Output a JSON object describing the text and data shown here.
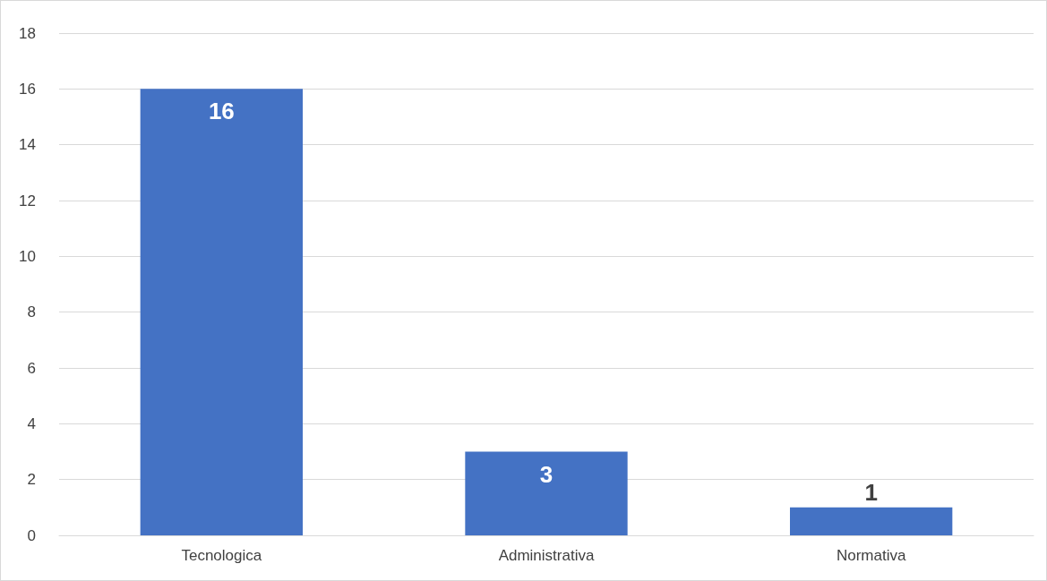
{
  "chart_data": {
    "type": "bar",
    "categories": [
      "Tecnologica",
      "Administrativa",
      "Normativa"
    ],
    "values": [
      16,
      3,
      1
    ],
    "color": "#4472c4",
    "ylim": [
      0,
      18
    ],
    "yticks": [
      0,
      2,
      4,
      6,
      8,
      10,
      12,
      14,
      16,
      18
    ],
    "grid": "y",
    "data_labels": true
  }
}
